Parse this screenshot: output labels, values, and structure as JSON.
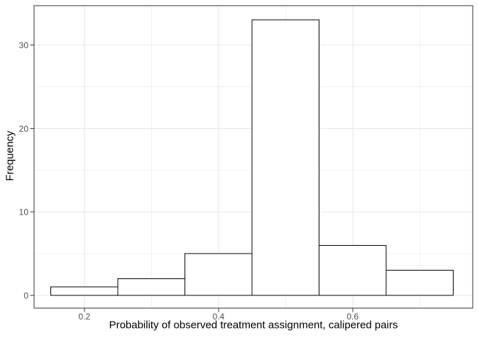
{
  "chart_data": {
    "type": "bar",
    "style": "histogram",
    "title": "",
    "xlabel": "Probability of observed treatment assignment, calipered pairs",
    "ylabel": "Frequency",
    "bin_edges": [
      0.15,
      0.25,
      0.35,
      0.45,
      0.55,
      0.65,
      0.75
    ],
    "counts": [
      1,
      2,
      5,
      33,
      6,
      3
    ],
    "x_ticks": {
      "values": [
        0.2,
        0.4,
        0.6
      ],
      "labels": [
        "0.2",
        "0.4",
        "0.6"
      ]
    },
    "y_ticks": {
      "values": [
        0,
        10,
        20,
        30
      ],
      "labels": [
        "0",
        "10",
        "20",
        "30"
      ]
    },
    "x_minor_gridlines": [
      0.3,
      0.5,
      0.7
    ],
    "y_minor_gridlines": [
      5,
      15,
      25
    ],
    "xlim": [
      0.125,
      0.779
    ],
    "ylim": [
      -1.53,
      34.7
    ],
    "grid": true,
    "legend": "none",
    "colors": {
      "background": "#ffffff",
      "panel_background": "#ffffff",
      "panel_border": "#333333",
      "major_grid": "#e6e6e6",
      "minor_grid": "#f2f2f2",
      "bar_fill": "#ffffff",
      "bar_stroke": "#000000",
      "tick_mark": "#333333",
      "tick_label": "#4d4d4d",
      "axis_title": "#000000"
    }
  }
}
